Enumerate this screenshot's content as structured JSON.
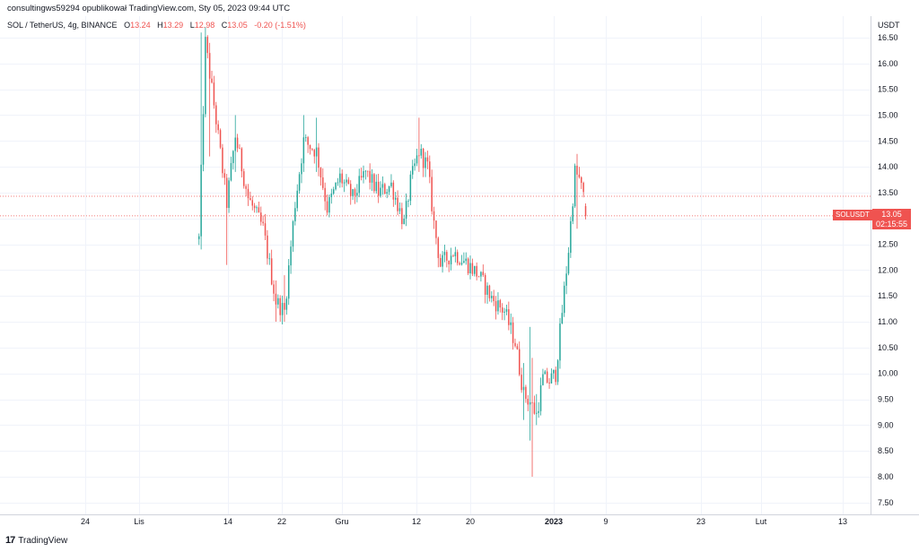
{
  "publisher_line": "consultingws59294 opublikował TradingView.com, Sty 05, 2023 09:44 UTC",
  "legend": {
    "symbol": "SOL / TetherUS, 4g, BINANCE",
    "o_label": "O",
    "o": "13.24",
    "h_label": "H",
    "h": "13.29",
    "l_label": "L",
    "l": "12.98",
    "c_label": "C",
    "c": "13.05",
    "change": "-0.20 (-1.51%)"
  },
  "price_tag": {
    "symbol": "SOLUSDT",
    "price": "13.05",
    "countdown": "02:15:55"
  },
  "footer": {
    "logo_text": "TradingView",
    "logo_mark": "17"
  },
  "colors": {
    "up": "#26a69a",
    "down": "#ef5350",
    "grid": "#f0f3fa",
    "axis_text": "#131722"
  },
  "chart_data": {
    "type": "candlestick",
    "title": "SOL / TetherUS, 4g, BINANCE",
    "ylabel": "USDT",
    "ylim": [
      7.25,
      16.75
    ],
    "yticks": [
      7.5,
      8.0,
      8.5,
      9.0,
      9.5,
      10.0,
      10.5,
      11.0,
      11.5,
      12.0,
      12.5,
      13.0,
      13.5,
      14.0,
      14.5,
      15.0,
      15.5,
      16.0,
      16.5
    ],
    "ytick_labels": [
      "7.50",
      "8.00",
      "8.50",
      "9.00",
      "9.50",
      "10.00",
      "10.50",
      "11.00",
      "11.50",
      "12.00",
      "12.50",
      "13.00",
      "13.50",
      "14.00",
      "14.50",
      "15.00",
      "15.50",
      "16.00",
      "16.50"
    ],
    "xticks": [
      {
        "label": "24",
        "bold": false
      },
      {
        "label": "Lis",
        "bold": false
      },
      {
        "label": "14",
        "bold": false
      },
      {
        "label": "22",
        "bold": false
      },
      {
        "label": "Gru",
        "bold": false
      },
      {
        "label": "12",
        "bold": false
      },
      {
        "label": "20",
        "bold": false
      },
      {
        "label": "2023",
        "bold": true
      },
      {
        "label": "9",
        "bold": false
      },
      {
        "label": "23",
        "bold": false
      },
      {
        "label": "Lut",
        "bold": false
      },
      {
        "label": "13",
        "bold": false
      }
    ],
    "last_price": 13.05,
    "reference_price": 13.43,
    "grid": true,
    "path_nodes": [
      {
        "i": 0,
        "p": 12.6
      },
      {
        "i": 3,
        "p": 16.4
      },
      {
        "i": 8,
        "p": 14.9
      },
      {
        "i": 13,
        "p": 13.3
      },
      {
        "i": 17,
        "p": 14.6
      },
      {
        "i": 23,
        "p": 13.4
      },
      {
        "i": 30,
        "p": 12.8
      },
      {
        "i": 36,
        "p": 11.4
      },
      {
        "i": 40,
        "p": 11.2
      },
      {
        "i": 45,
        "p": 13.3
      },
      {
        "i": 49,
        "p": 14.5
      },
      {
        "i": 55,
        "p": 14.3
      },
      {
        "i": 60,
        "p": 13.2
      },
      {
        "i": 66,
        "p": 13.8
      },
      {
        "i": 72,
        "p": 13.4
      },
      {
        "i": 78,
        "p": 13.9
      },
      {
        "i": 84,
        "p": 13.5
      },
      {
        "i": 90,
        "p": 13.65
      },
      {
        "i": 96,
        "p": 12.9
      },
      {
        "i": 99,
        "p": 13.7
      },
      {
        "i": 103,
        "p": 14.3
      },
      {
        "i": 107,
        "p": 14.0
      },
      {
        "i": 110,
        "p": 12.9
      },
      {
        "i": 113,
        "p": 12.1
      },
      {
        "i": 119,
        "p": 12.35
      },
      {
        "i": 125,
        "p": 12.15
      },
      {
        "i": 131,
        "p": 11.9
      },
      {
        "i": 137,
        "p": 11.45
      },
      {
        "i": 143,
        "p": 11.2
      },
      {
        "i": 148,
        "p": 10.6
      },
      {
        "i": 152,
        "p": 9.6
      },
      {
        "i": 155,
        "p": 9.45
      },
      {
        "i": 158,
        "p": 9.2
      },
      {
        "i": 161,
        "p": 9.9
      },
      {
        "i": 164,
        "p": 9.85
      },
      {
        "i": 167,
        "p": 10.0
      },
      {
        "i": 170,
        "p": 11.2
      },
      {
        "i": 173,
        "p": 12.4
      },
      {
        "i": 176,
        "p": 13.9
      },
      {
        "i": 178,
        "p": 13.75
      },
      {
        "i": 181,
        "p": 13.24
      }
    ],
    "spikes": [
      {
        "i": 1,
        "high": 16.6,
        "low": 12.4
      },
      {
        "i": 3,
        "high": 16.7,
        "low": 15.0
      },
      {
        "i": 5,
        "high": 16.4,
        "low": 14.2
      },
      {
        "i": 13,
        "high": 13.7,
        "low": 12.1
      },
      {
        "i": 17,
        "high": 15.0,
        "low": 13.9
      },
      {
        "i": 36,
        "high": 11.8,
        "low": 11.0
      },
      {
        "i": 40,
        "high": 11.9,
        "low": 11.0
      },
      {
        "i": 49,
        "high": 15.0,
        "low": 13.9
      },
      {
        "i": 55,
        "high": 14.95,
        "low": 13.9
      },
      {
        "i": 103,
        "high": 14.95,
        "low": 13.9
      },
      {
        "i": 152,
        "high": 10.2,
        "low": 9.1
      },
      {
        "i": 155,
        "high": 10.9,
        "low": 8.7
      },
      {
        "i": 156,
        "high": 10.3,
        "low": 8.0
      },
      {
        "i": 158,
        "high": 9.6,
        "low": 9.0
      },
      {
        "i": 177,
        "high": 14.25,
        "low": 12.8
      }
    ],
    "last_candle": {
      "open": 13.24,
      "high": 13.29,
      "low": 12.98,
      "close": 13.05
    }
  }
}
